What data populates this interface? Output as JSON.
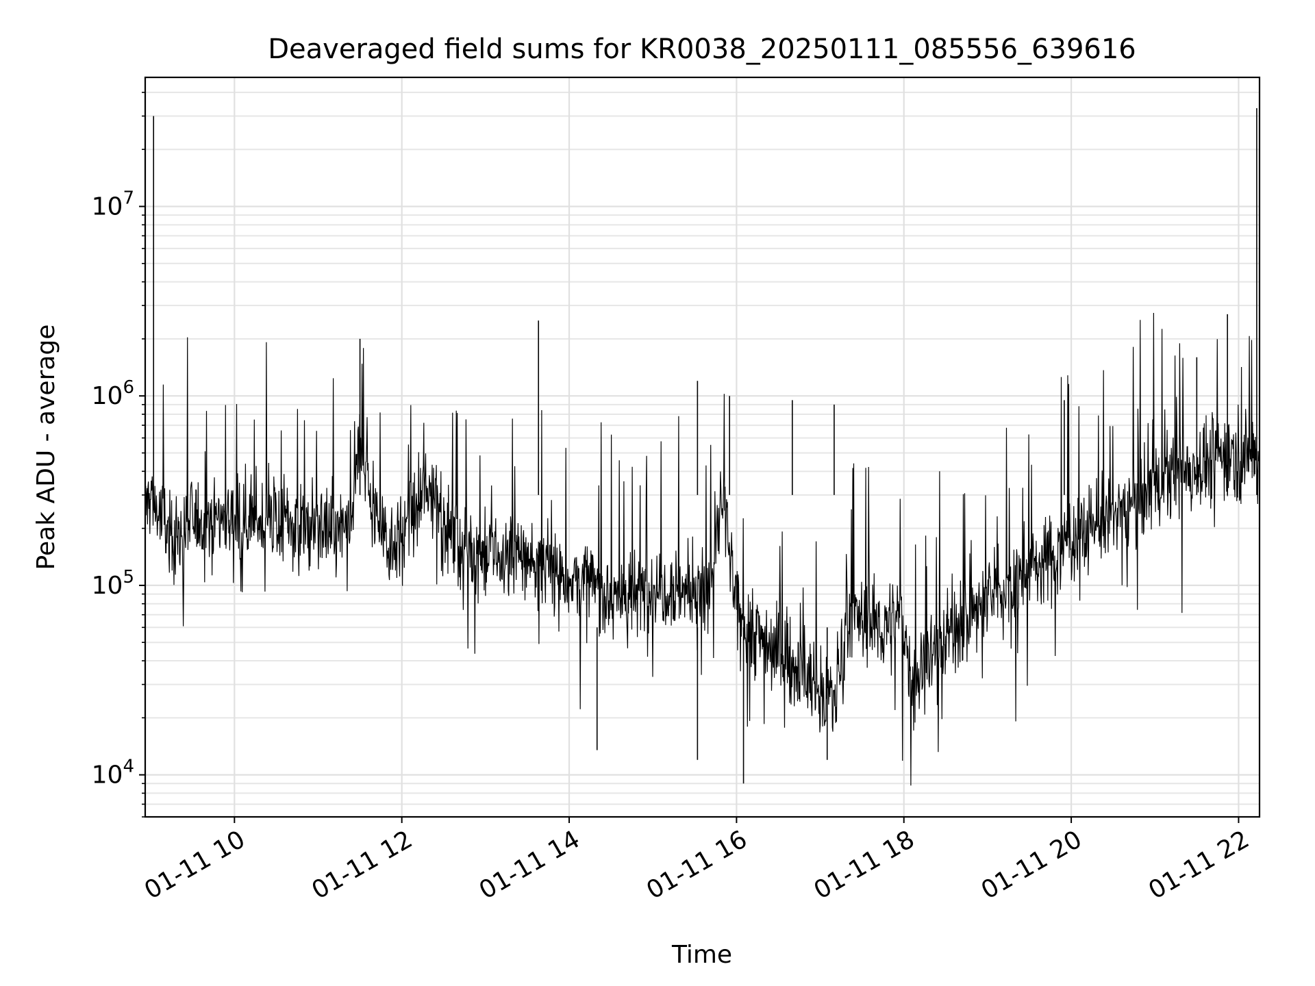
{
  "chart_data": {
    "type": "line",
    "title": "Deaveraged field sums for KR0038_20250111_085556_639616",
    "xlabel": "Time",
    "ylabel": "Peak ADU - average",
    "y_scale": "log",
    "xlim": [
      "2025-01-11T08:56",
      "2025-01-11T22:15"
    ],
    "ylim": [
      6000,
      48000000
    ],
    "x_ticks": [
      {
        "value": "2025-01-11T10:00",
        "label": "01-11 10"
      },
      {
        "value": "2025-01-11T12:00",
        "label": "01-11 12"
      },
      {
        "value": "2025-01-11T14:00",
        "label": "01-11 14"
      },
      {
        "value": "2025-01-11T16:00",
        "label": "01-11 16"
      },
      {
        "value": "2025-01-11T18:00",
        "label": "01-11 18"
      },
      {
        "value": "2025-01-11T20:00",
        "label": "01-11 20"
      },
      {
        "value": "2025-01-11T22:00",
        "label": "01-11 22"
      }
    ],
    "y_ticks": [
      {
        "value": 10000,
        "mantissa": "10",
        "exponent": "4"
      },
      {
        "value": 100000,
        "mantissa": "10",
        "exponent": "5"
      },
      {
        "value": 1000000,
        "mantissa": "10",
        "exponent": "6"
      },
      {
        "value": 10000000,
        "mantissa": "10",
        "exponent": "7"
      }
    ],
    "grid": true,
    "line_color": "#000000",
    "series": [
      {
        "x": [
          "2025-01-11T08:56",
          "2025-01-11T09:00",
          "2025-01-11T09:10",
          "2025-01-11T09:20",
          "2025-01-11T09:30",
          "2025-01-11T09:45",
          "2025-01-11T10:00",
          "2025-01-11T10:15",
          "2025-01-11T10:30",
          "2025-01-11T10:45",
          "2025-01-11T11:00",
          "2025-01-11T11:15",
          "2025-01-11T11:25",
          "2025-01-11T11:30",
          "2025-01-11T11:40",
          "2025-01-11T11:50",
          "2025-01-11T12:00",
          "2025-01-11T12:15",
          "2025-01-11T12:25",
          "2025-01-11T12:30",
          "2025-01-11T12:45",
          "2025-01-11T13:00",
          "2025-01-11T13:15",
          "2025-01-11T13:30",
          "2025-01-11T13:45",
          "2025-01-11T14:00",
          "2025-01-11T14:15",
          "2025-01-11T14:30",
          "2025-01-11T14:45",
          "2025-01-11T15:00",
          "2025-01-11T15:15",
          "2025-01-11T15:30",
          "2025-01-11T15:40",
          "2025-01-11T15:50",
          "2025-01-11T16:00",
          "2025-01-11T16:15",
          "2025-01-11T16:30",
          "2025-01-11T16:45",
          "2025-01-11T17:00",
          "2025-01-11T17:10",
          "2025-01-11T17:20",
          "2025-01-11T17:30",
          "2025-01-11T17:45",
          "2025-01-11T18:00",
          "2025-01-11T18:05",
          "2025-01-11T18:15",
          "2025-01-11T18:30",
          "2025-01-11T18:45",
          "2025-01-11T19:00",
          "2025-01-11T19:15",
          "2025-01-11T19:30",
          "2025-01-11T19:45",
          "2025-01-11T20:00",
          "2025-01-11T20:15",
          "2025-01-11T20:30",
          "2025-01-11T20:45",
          "2025-01-11T21:00",
          "2025-01-11T21:15",
          "2025-01-11T21:30",
          "2025-01-11T21:45",
          "2025-01-11T21:55",
          "2025-01-11T22:05",
          "2025-01-11T22:15"
        ],
        "y": [
          250000,
          300000,
          200000,
          180000,
          220000,
          230000,
          230000,
          220000,
          220000,
          210000,
          200000,
          190000,
          220000,
          600000,
          260000,
          170000,
          180000,
          280000,
          350000,
          200000,
          160000,
          140000,
          140000,
          140000,
          120000,
          110000,
          100000,
          90000,
          85000,
          100000,
          100000,
          90000,
          85000,
          300000,
          70000,
          55000,
          45000,
          35000,
          28000,
          25000,
          70000,
          65000,
          60000,
          65000,
          30000,
          40000,
          55000,
          65000,
          85000,
          100000,
          120000,
          140000,
          180000,
          210000,
          230000,
          280000,
          340000,
          380000,
          420000,
          470000,
          500000,
          500000,
          450000
        ]
      }
    ],
    "spikes": [
      {
        "x": "2025-01-11T09:02",
        "y": 30000000
      },
      {
        "x": "2025-01-11T11:30",
        "y": 2000000
      },
      {
        "x": "2025-01-11T13:38",
        "y": 2500000
      },
      {
        "x": "2025-01-11T15:32",
        "y": 1200000
      },
      {
        "x": "2025-01-11T15:55",
        "y": 1000000
      },
      {
        "x": "2025-01-11T16:40",
        "y": 950000
      },
      {
        "x": "2025-01-11T17:10",
        "y": 900000
      },
      {
        "x": "2025-01-11T19:55",
        "y": 950000
      },
      {
        "x": "2025-01-11T21:30",
        "y": 1600000
      },
      {
        "x": "2025-01-11T21:52",
        "y": 2700000
      },
      {
        "x": "2025-01-11T22:13",
        "y": 33000000
      }
    ],
    "dips": [
      {
        "x": "2025-01-11T16:05",
        "y": 9000
      },
      {
        "x": "2025-01-11T17:05",
        "y": 12000
      },
      {
        "x": "2025-01-11T15:32",
        "y": 12000
      },
      {
        "x": "2025-01-11T14:20",
        "y": 13500
      }
    ]
  }
}
